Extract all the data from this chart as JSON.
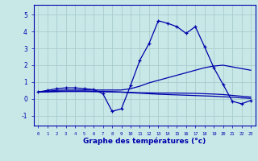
{
  "xlabel": "Graphe des températures (°c)",
  "background_color": "#c8e8e8",
  "grid_color": "#a8cccc",
  "line_color": "#0000aa",
  "xlim": [
    -0.5,
    23.5
  ],
  "ylim": [
    -1.6,
    5.6
  ],
  "yticks": [
    -1,
    0,
    1,
    2,
    3,
    4,
    5
  ],
  "xticks": [
    0,
    1,
    2,
    3,
    4,
    5,
    6,
    7,
    8,
    9,
    10,
    11,
    12,
    13,
    14,
    15,
    16,
    17,
    18,
    19,
    20,
    21,
    22,
    23
  ],
  "main_y": [
    0.4,
    0.5,
    0.6,
    0.65,
    0.65,
    0.6,
    0.55,
    0.3,
    -0.75,
    -0.6,
    0.8,
    2.3,
    3.3,
    4.65,
    4.5,
    4.3,
    3.9,
    4.3,
    3.1,
    1.85,
    0.85,
    -0.15,
    -0.3,
    -0.1
  ],
  "trend_high_y": [
    0.4,
    0.45,
    0.5,
    0.52,
    0.52,
    0.52,
    0.52,
    0.52,
    0.52,
    0.52,
    0.6,
    0.75,
    0.95,
    1.1,
    1.25,
    1.4,
    1.55,
    1.7,
    1.85,
    1.95,
    2.0,
    1.9,
    1.8,
    1.7
  ],
  "trend_mid_y": [
    0.4,
    0.42,
    0.44,
    0.46,
    0.46,
    0.46,
    0.44,
    0.44,
    0.42,
    0.4,
    0.38,
    0.36,
    0.35,
    0.34,
    0.34,
    0.34,
    0.33,
    0.32,
    0.3,
    0.28,
    0.25,
    0.2,
    0.15,
    0.1
  ],
  "trend_low_y": [
    0.4,
    0.41,
    0.42,
    0.43,
    0.43,
    0.43,
    0.42,
    0.42,
    0.41,
    0.39,
    0.36,
    0.33,
    0.3,
    0.27,
    0.25,
    0.23,
    0.21,
    0.19,
    0.17,
    0.15,
    0.12,
    0.09,
    0.05,
    0.02
  ]
}
